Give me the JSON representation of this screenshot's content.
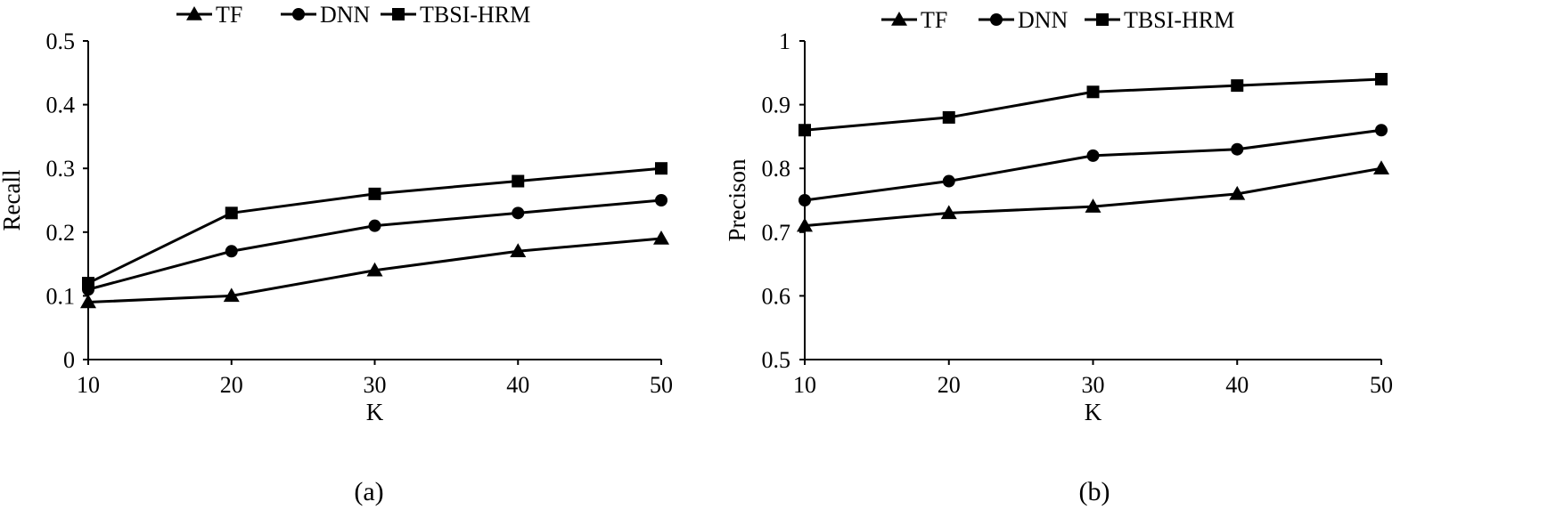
{
  "chart_data": [
    {
      "type": "line",
      "caption": "(a)",
      "xlabel": "K",
      "ylabel": "Recall",
      "x": [
        10,
        20,
        30,
        40,
        50
      ],
      "xticks": [
        "10",
        "20",
        "30",
        "40",
        "50"
      ],
      "ylim": [
        0,
        0.5
      ],
      "yticks": [
        "0",
        "0.1",
        "0.2",
        "0.3",
        "0.4",
        "0.5"
      ],
      "grid": false,
      "legend": "top",
      "series": [
        {
          "name": "TF",
          "marker": "triangle",
          "values": [
            0.09,
            0.1,
            0.14,
            0.17,
            0.19
          ]
        },
        {
          "name": "DNN",
          "marker": "circle",
          "values": [
            0.11,
            0.17,
            0.21,
            0.23,
            0.25
          ]
        },
        {
          "name": "TBSI-HRM",
          "marker": "square",
          "values": [
            0.12,
            0.23,
            0.26,
            0.28,
            0.3
          ]
        }
      ]
    },
    {
      "type": "line",
      "caption": "(b)",
      "xlabel": "K",
      "ylabel": "Precison",
      "x": [
        10,
        20,
        30,
        40,
        50
      ],
      "xticks": [
        "10",
        "20",
        "30",
        "40",
        "50"
      ],
      "ylim": [
        0.5,
        1
      ],
      "yticks": [
        "0.5",
        "0.6",
        "0.7",
        "0.8",
        "0.9",
        "1"
      ],
      "grid": false,
      "legend": "top",
      "series": [
        {
          "name": "TF",
          "marker": "triangle",
          "values": [
            0.71,
            0.73,
            0.74,
            0.76,
            0.8
          ]
        },
        {
          "name": "DNN",
          "marker": "circle",
          "values": [
            0.75,
            0.78,
            0.82,
            0.83,
            0.86
          ]
        },
        {
          "name": "TBSI-HRM",
          "marker": "square",
          "values": [
            0.86,
            0.88,
            0.92,
            0.93,
            0.94
          ]
        }
      ]
    }
  ]
}
